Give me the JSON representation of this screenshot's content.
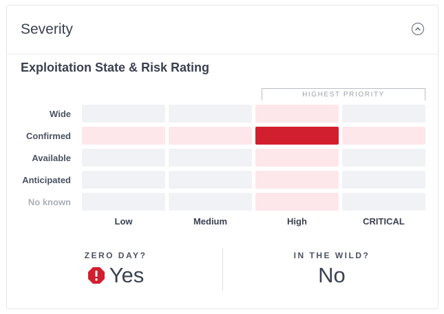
{
  "card": {
    "title": "Severity",
    "collapse_icon": "chevron-up-circle-icon"
  },
  "matrix": {
    "subtitle": "Exploitation State & Risk Rating",
    "highlight_label": "HIGHEST PRIORITY",
    "rows": [
      "Wide",
      "Confirmed",
      "Available",
      "Anticipated",
      "No known"
    ],
    "columns": [
      "Low",
      "Medium",
      "High",
      "CRITICAL"
    ],
    "selected": {
      "row": "Confirmed",
      "column": "High"
    },
    "colors": {
      "empty": "#f1f2f5",
      "tint": "#fde7ea",
      "selected": "#d21f2f"
    }
  },
  "stats": {
    "zero_day": {
      "label": "ZERO DAY?",
      "value": "Yes",
      "icon": "alert-octagon-icon",
      "icon_color": "#d21f2f"
    },
    "in_the_wild": {
      "label": "IN THE WILD?",
      "value": "No"
    }
  }
}
